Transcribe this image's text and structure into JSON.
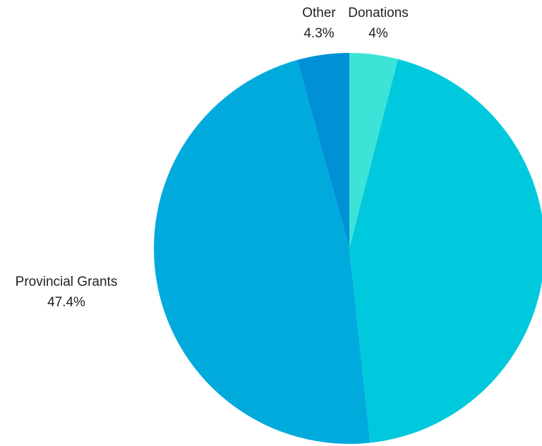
{
  "chart_data": {
    "type": "pie",
    "start_angle_deg": 0,
    "direction": "clockwise",
    "slices": [
      {
        "label": "Donations",
        "value": 4.0,
        "display": "4%",
        "color": "#3de3d6"
      },
      {
        "label": "",
        "value": 44.3,
        "display": "",
        "color": "#00c9dd"
      },
      {
        "label": "Provincial Grants",
        "value": 47.4,
        "display": "47.4%",
        "color": "#00aadd"
      },
      {
        "label": "Other",
        "value": 4.3,
        "display": "4.3%",
        "color": "#0090d6"
      }
    ]
  }
}
